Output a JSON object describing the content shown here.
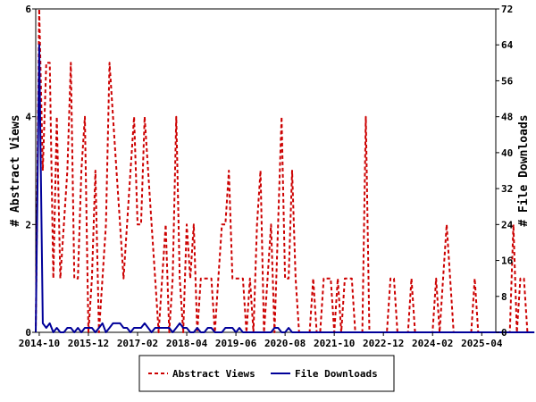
{
  "chart_data": {
    "type": "line",
    "title": "",
    "ylabel_left": "# Abstract Views",
    "ylabel_right": "# File Downloads",
    "ylim_left": [
      0,
      6
    ],
    "ylim_right": [
      0,
      72
    ],
    "yticks_left": [
      "0",
      "2",
      "4",
      "6"
    ],
    "yticks_right": [
      "0",
      "8",
      "16",
      "24",
      "32",
      "40",
      "48",
      "56",
      "64",
      "72"
    ],
    "xlim": [
      "2014-09",
      "2025-08"
    ],
    "xticks": [
      "2014-10",
      "2015-12",
      "2017-02",
      "2018-04",
      "2019-06",
      "2020-08",
      "2021-10",
      "2022-12",
      "2024-02",
      "2025-04"
    ],
    "grid": false,
    "legend_position": "bottom-center",
    "series": [
      {
        "name": "Abstract Views",
        "axis": "left",
        "color": "#cc0000",
        "style": "dashed",
        "values": [
          0,
          6,
          3,
          5,
          5,
          1,
          4,
          1,
          2,
          3,
          5,
          1,
          1,
          3,
          4,
          0,
          1,
          3,
          0,
          1,
          2,
          5,
          4,
          3,
          2,
          1,
          2,
          3,
          4,
          2,
          2,
          4,
          3,
          2,
          1,
          0,
          1,
          2,
          0,
          1,
          4,
          1,
          0,
          2,
          1,
          2,
          0,
          1,
          1,
          1,
          1,
          0,
          1,
          2,
          2,
          3,
          1,
          1,
          1,
          1,
          0,
          1,
          0,
          2,
          3,
          0,
          1,
          2,
          0,
          2,
          4,
          1,
          1,
          3,
          1,
          0,
          0,
          0,
          0,
          1,
          0,
          0,
          1,
          1,
          1,
          0,
          1,
          0,
          1,
          1,
          1,
          0,
          0,
          0,
          4,
          0,
          0,
          0,
          0,
          0,
          0,
          1,
          1,
          0,
          0,
          0,
          0,
          1,
          0,
          0,
          0,
          0,
          0,
          0,
          1,
          0,
          1,
          2,
          1,
          0,
          0,
          0,
          0,
          0,
          0,
          1,
          0,
          0,
          0,
          0,
          0,
          0,
          0,
          0,
          0,
          0,
          2,
          0,
          1,
          1,
          0,
          0
        ]
      },
      {
        "name": "File Downloads",
        "axis": "right",
        "color": "#000099",
        "style": "solid",
        "values": [
          0,
          64,
          2,
          1,
          2,
          0,
          1,
          0,
          0,
          1,
          1,
          0,
          1,
          0,
          1,
          1,
          1,
          0,
          1,
          2,
          0,
          1,
          2,
          2,
          2,
          1,
          1,
          0,
          1,
          1,
          1,
          2,
          1,
          0,
          1,
          1,
          1,
          1,
          1,
          0,
          1,
          2,
          1,
          1,
          0,
          0,
          1,
          0,
          0,
          1,
          1,
          0,
          0,
          0,
          1,
          1,
          1,
          0,
          1,
          0,
          0,
          0,
          0,
          0,
          0,
          0,
          0,
          0,
          1,
          1,
          0,
          0,
          1,
          0,
          0,
          0,
          0,
          0,
          0,
          0,
          0,
          0,
          0,
          0,
          0,
          0,
          0,
          0,
          0,
          0,
          0,
          0,
          0,
          0,
          0,
          0,
          0,
          0,
          0,
          0,
          0,
          0,
          0,
          0,
          0,
          0,
          0,
          0,
          0,
          0,
          0,
          0,
          0,
          0,
          0,
          0,
          0,
          0,
          0,
          0,
          0,
          0,
          0,
          0,
          0,
          0,
          0,
          0,
          0,
          0,
          0,
          0,
          0,
          0,
          0,
          0,
          0,
          0,
          0,
          0,
          0,
          0,
          0
        ]
      }
    ]
  }
}
